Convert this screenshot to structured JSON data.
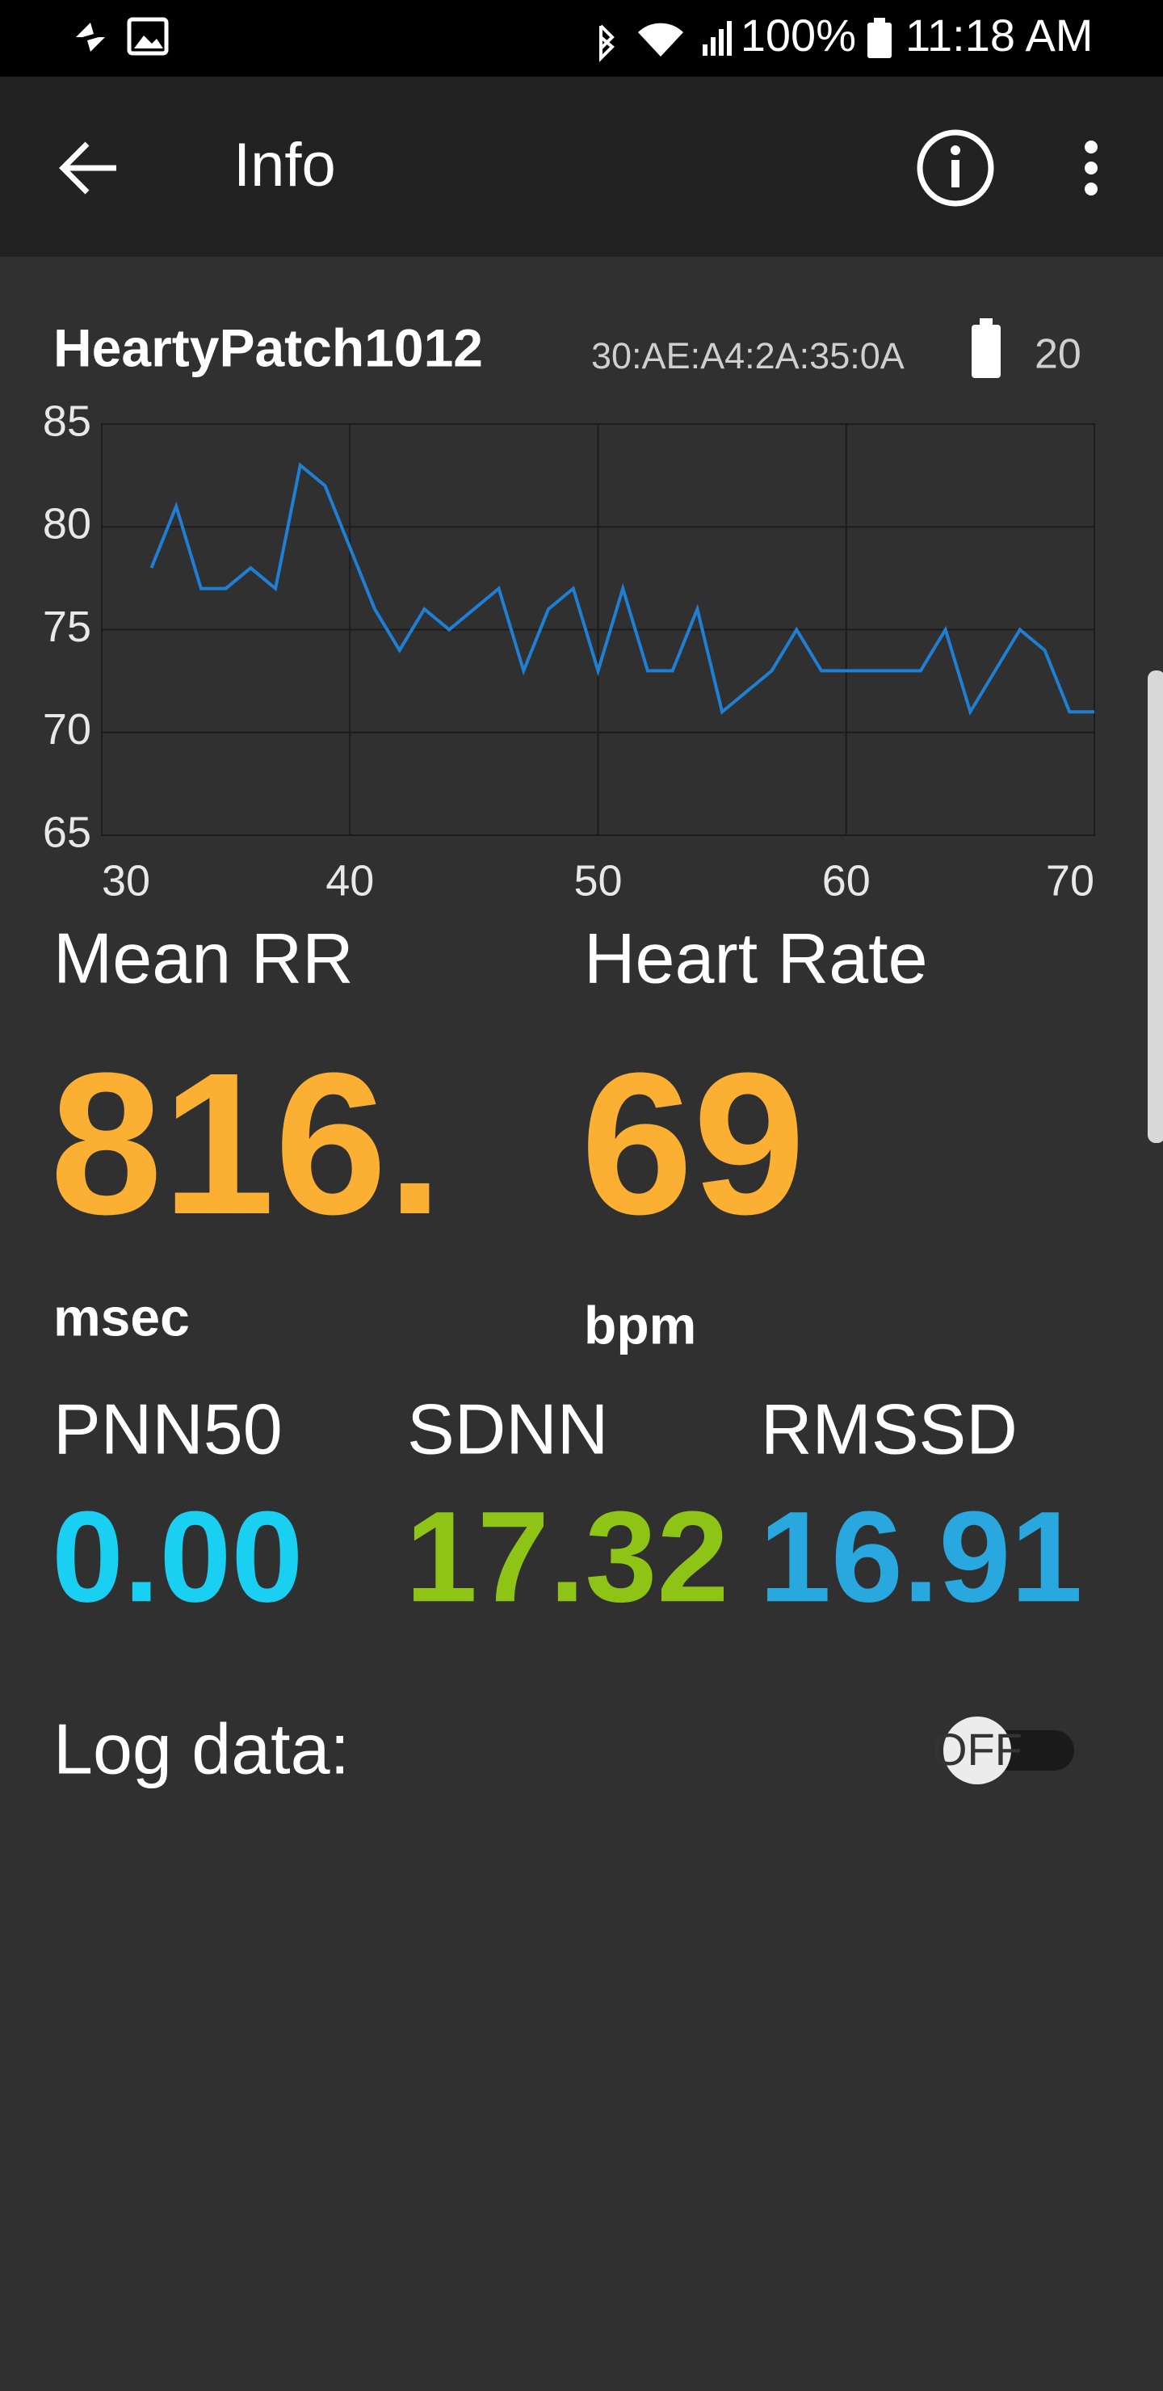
{
  "status_bar": {
    "battery": "100%",
    "time": "11:18 AM"
  },
  "app_bar": {
    "title": "Info"
  },
  "device": {
    "name": "HeartyPatch1012",
    "address": "30:AE:A4:2A:35:0A",
    "battery": "20"
  },
  "chart_data": {
    "type": "line",
    "color": "#1f7fd4",
    "x": [
      32,
      33,
      34,
      35,
      36,
      37,
      38,
      39,
      40,
      41,
      42,
      43,
      44,
      45,
      46,
      47,
      48,
      49,
      50,
      51,
      52,
      53,
      54,
      55,
      56,
      57,
      58,
      59,
      60,
      61,
      62,
      63,
      64,
      65,
      66,
      67,
      68,
      69,
      70
    ],
    "values": [
      78,
      81,
      77,
      77,
      78,
      77,
      83,
      82,
      79,
      76,
      74,
      76,
      75,
      76,
      77,
      73,
      76,
      77,
      73,
      77,
      73,
      73,
      76,
      71,
      72,
      73,
      75,
      73,
      73,
      73,
      73,
      73,
      75,
      71,
      73,
      75,
      74,
      71,
      71
    ],
    "xlim": [
      30,
      70
    ],
    "ylim": [
      65,
      85
    ],
    "xticks": [
      30,
      40,
      50,
      60,
      70
    ],
    "yticks": [
      65,
      70,
      75,
      80,
      85
    ],
    "grid": true
  },
  "metrics": [
    {
      "label": "Mean RR",
      "value": "816.",
      "unit": "msec"
    },
    {
      "label": "Heart Rate",
      "value": "69",
      "unit": "bpm"
    }
  ],
  "stats": [
    {
      "label": "PNN50",
      "value": "0.00"
    },
    {
      "label": "SDNN",
      "value": "17.32"
    },
    {
      "label": "RMSSD",
      "value": "16.91"
    }
  ],
  "log": {
    "label": "Log data:",
    "toggle": "OFF"
  }
}
